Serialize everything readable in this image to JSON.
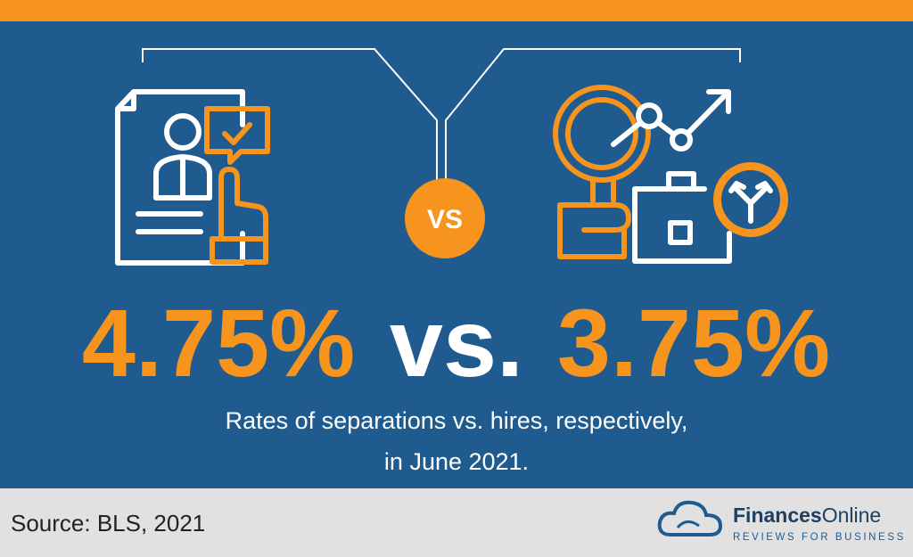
{
  "badge": "VS",
  "headline": {
    "left": "4.75%",
    "middle": "vs.",
    "right": "3.75%"
  },
  "caption": [
    "Rates of separations vs. hires, respectively,",
    "in June 2021."
  ],
  "footer": {
    "source": "Source: BLS, 2021",
    "brand_bold": "Finances",
    "brand_light": "Online",
    "tagline": "REVIEWS FOR BUSINESS"
  }
}
